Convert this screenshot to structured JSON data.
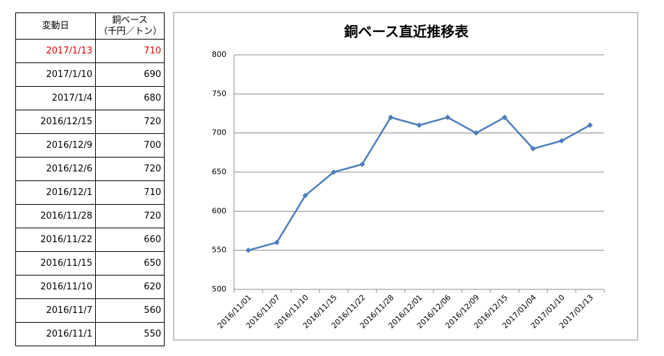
{
  "table": {
    "columns": [
      "変動日",
      "銅ベース",
      "（千円／トン）"
    ],
    "rows": [
      [
        "2017/1/13",
        710
      ],
      [
        "2017/1/10",
        690
      ],
      [
        "2017/1/4",
        680
      ],
      [
        "2016/12/15",
        720
      ],
      [
        "2016/12/9",
        700
      ],
      [
        "2016/12/6",
        720
      ],
      [
        "2016/12/1",
        710
      ],
      [
        "2016/11/28",
        720
      ],
      [
        "2016/11/22",
        660
      ],
      [
        "2016/11/15",
        650
      ],
      [
        "2016/11/10",
        620
      ],
      [
        "2016/11/7",
        560
      ],
      [
        "2016/11/1",
        550
      ]
    ]
  },
  "chart_data": {
    "type": "line",
    "title": "銅ベース直近推移表",
    "categories": [
      "2016/11/01",
      "2016/11/07",
      "2016/11/10",
      "2016/11/15",
      "2016/11/22",
      "2016/11/28",
      "2016/12/01",
      "2016/12/06",
      "2016/12/09",
      "2016/12/15",
      "2017/01/04",
      "2017/01/10",
      "2017/01/13"
    ],
    "values": [
      550,
      560,
      620,
      650,
      660,
      720,
      710,
      720,
      700,
      720,
      680,
      690,
      710
    ],
    "color": "#4a7ebb",
    "ylim": [
      500,
      800
    ],
    "yticks": [
      500,
      550,
      600,
      650,
      700,
      750,
      800
    ],
    "grid": true
  }
}
